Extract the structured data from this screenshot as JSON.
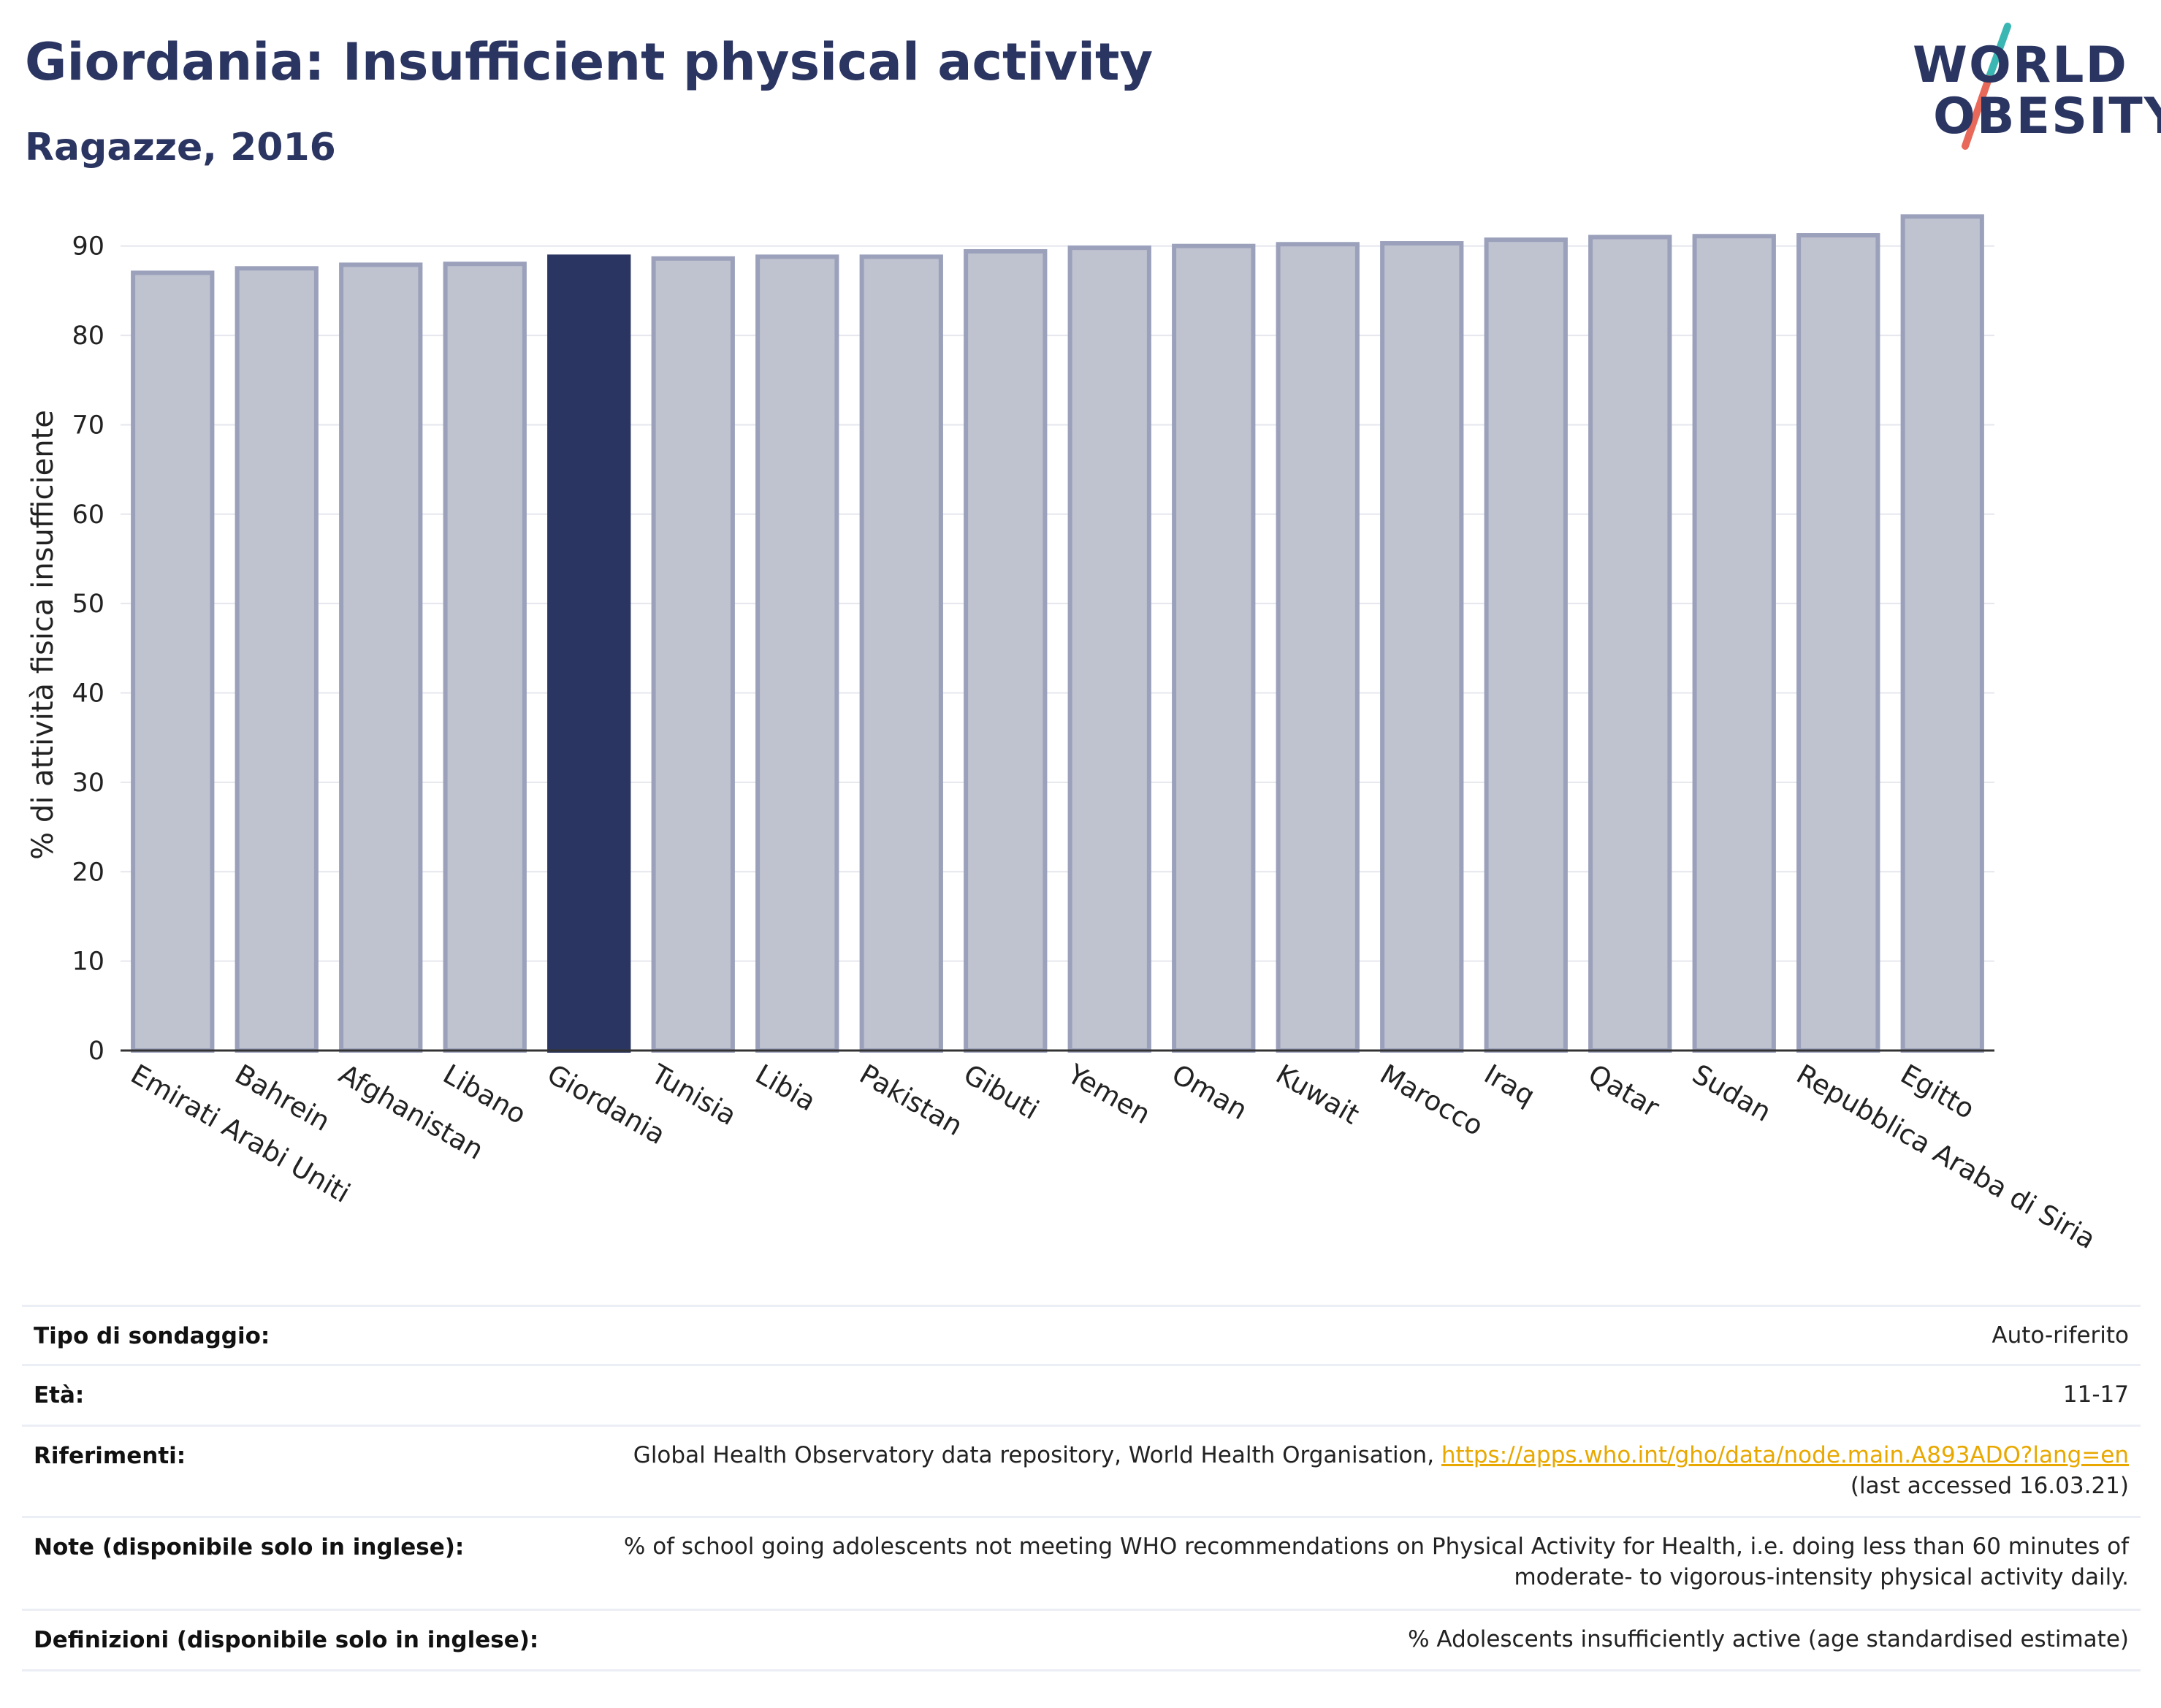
{
  "header": {
    "title": "Giordania: Insufficient physical activity",
    "subtitle": "Ragazze, 2016"
  },
  "logo": {
    "line1": "WORLD",
    "line2": "OBESITY",
    "colors": {
      "text": "#2b3561",
      "slash_top": "#3ab7b3",
      "slash_bottom": "#e8695a"
    }
  },
  "chart_data": {
    "type": "bar",
    "ylabel": "% di attività fisica insufficiente",
    "xlabel": "",
    "ylim": [
      0,
      93
    ],
    "yticks": [
      0,
      10,
      20,
      30,
      40,
      50,
      60,
      70,
      80,
      90
    ],
    "grid": true,
    "highlight": "Giordania",
    "colors": {
      "bar": "#bfc2cf",
      "bar_border": "#9ba1bb",
      "highlight": "#2b3561"
    },
    "categories": [
      "Emirati Arabi Uniti",
      "Bahrein",
      "Afghanistan",
      "Libano",
      "Giordania",
      "Tunisia",
      "Libia",
      "Pakistan",
      "Gibuti",
      "Yemen",
      "Oman",
      "Kuwait",
      "Marocco",
      "Iraq",
      "Qatar",
      "Sudan",
      "Repubblica Araba di Siria",
      "Egitto"
    ],
    "values": [
      87.0,
      87.5,
      87.9,
      88.0,
      88.8,
      88.6,
      88.8,
      88.8,
      89.4,
      89.8,
      90.0,
      90.2,
      90.3,
      90.7,
      91.0,
      91.1,
      91.2,
      93.3
    ]
  },
  "info": {
    "rows": [
      {
        "label": "Tipo di sondaggio:",
        "value": "Auto-riferito"
      },
      {
        "label": "Età:",
        "value": "11-17"
      },
      {
        "label": "Riferimenti:",
        "value": "Global Health Observatory data repository, World Health Organisation, ",
        "link": "https://apps.who.int/gho/data/node.main.A893ADO?lang=en",
        "value2": "(last accessed 16.03.21)"
      },
      {
        "label": "Note (disponibile solo in inglese):",
        "value": "% of school going adolescents not meeting WHO recommendations on Physical Activity for Health, i.e. doing less than 60 minutes of",
        "value2": "moderate- to vigorous-intensity physical activity daily."
      },
      {
        "label": "Definizioni (disponibile solo in inglese):",
        "value": "% Adolescents insufficiently active (age standardised estimate)"
      }
    ]
  }
}
